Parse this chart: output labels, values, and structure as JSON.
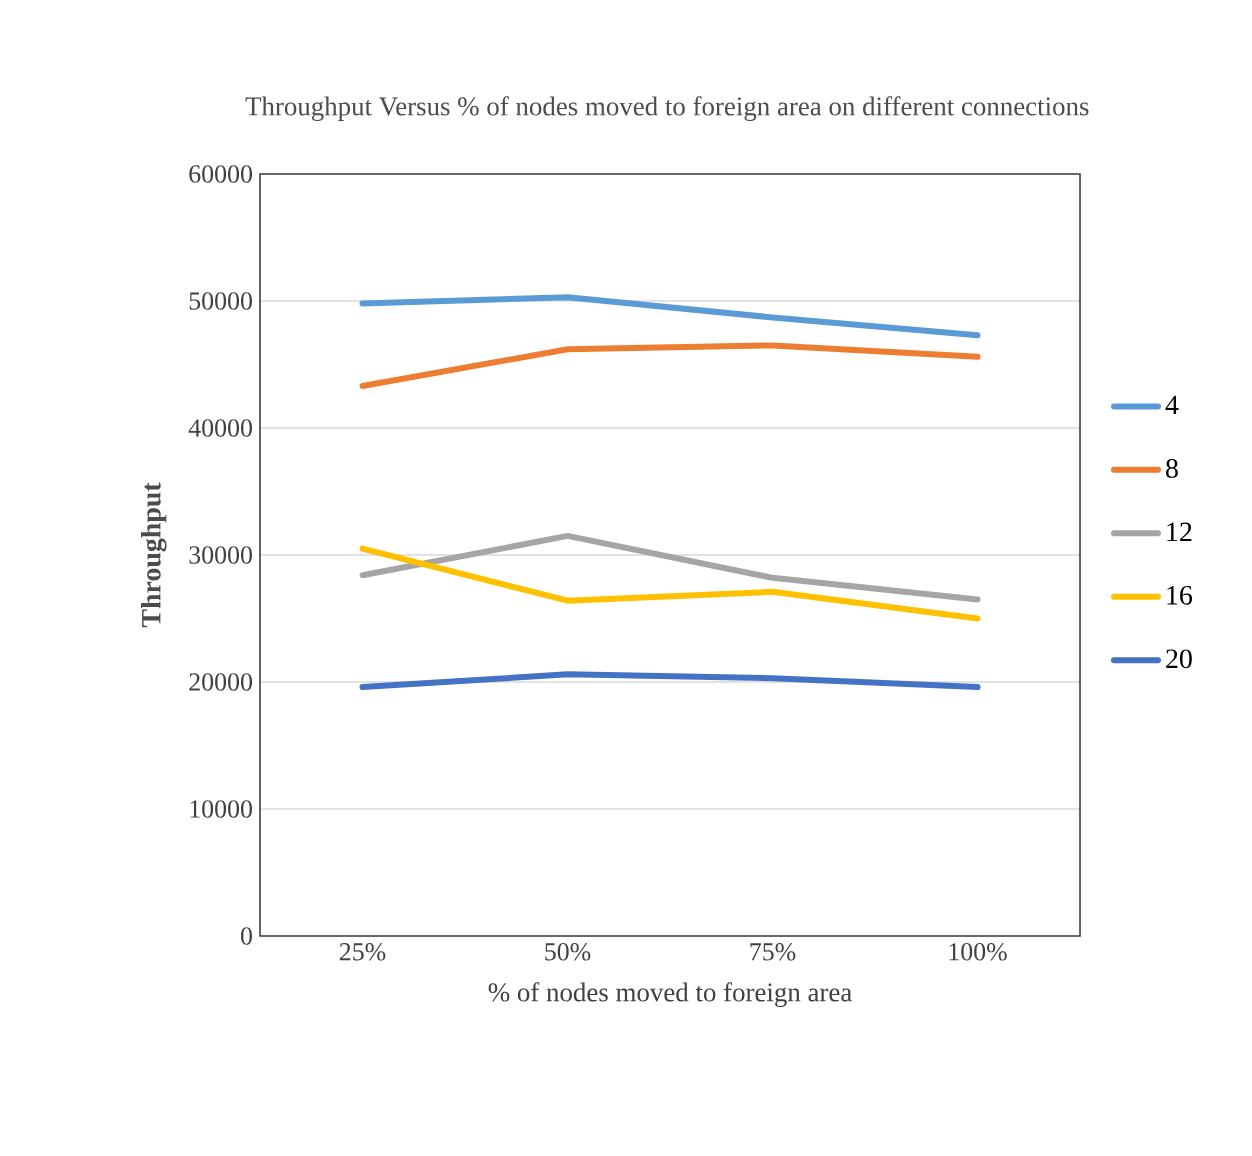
{
  "chart_data": {
    "type": "line",
    "title": "Throughput Versus % of nodes moved to foreign area on different connections",
    "xlabel": "% of nodes moved to foreign area",
    "ylabel": "Throughput",
    "categories": [
      "25%",
      "50%",
      "75%",
      "100%"
    ],
    "series": [
      {
        "name": "4",
        "color": "#5b9bd5",
        "values": [
          49800,
          50300,
          48700,
          47300
        ]
      },
      {
        "name": "8",
        "color": "#ed7d31",
        "values": [
          43300,
          46200,
          46500,
          45600
        ]
      },
      {
        "name": "12",
        "color": "#a5a5a5",
        "values": [
          28400,
          31500,
          28200,
          26500
        ]
      },
      {
        "name": "16",
        "color": "#ffc000",
        "values": [
          30500,
          26400,
          27100,
          25000
        ]
      },
      {
        "name": "20",
        "color": "#4472c4",
        "values": [
          19600,
          20600,
          20300,
          19600
        ]
      }
    ],
    "ylim": [
      0,
      60000
    ],
    "yticks": [
      0,
      10000,
      20000,
      30000,
      40000,
      50000,
      60000
    ],
    "grid": "y",
    "legend": "right",
    "marker": "none",
    "line_style": "solid"
  }
}
